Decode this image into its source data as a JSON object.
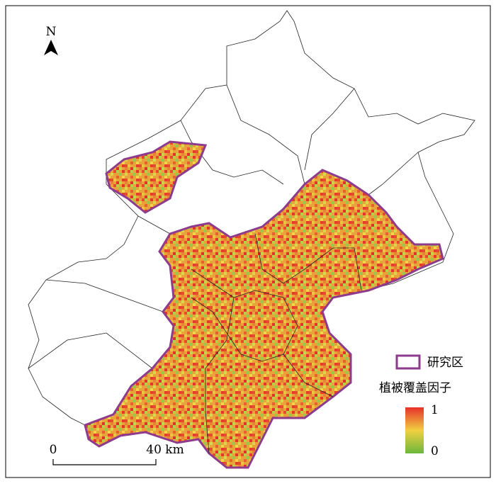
{
  "north_arrow": {
    "label": "N"
  },
  "legend": {
    "study_area": "研究区",
    "title": "植被覆盖因子",
    "max_label": "1",
    "min_label": "0"
  },
  "scale_bar": {
    "start": "0",
    "end": "40 km"
  }
}
